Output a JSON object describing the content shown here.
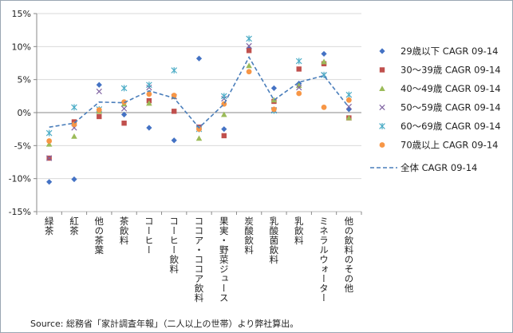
{
  "source_note": "Source: 総務省「家計調査年報」（二人以上の世帯）より弊社算出。",
  "chart_data": {
    "type": "scatter",
    "ylim": [
      -0.15,
      0.15
    ],
    "yticks": [
      -0.15,
      -0.1,
      -0.05,
      0,
      0.05,
      0.1,
      0.15
    ],
    "ytick_labels": [
      "-15%",
      "-10%",
      "-5%",
      "0%",
      "5%",
      "10%",
      "15%"
    ],
    "categories": [
      "緑茶",
      "紅茶",
      "他の茶葉",
      "茶飲料",
      "コーヒー",
      "コーヒー飲料",
      "ココア・ココア飲料",
      "果実・野菜ジュース",
      "炭酸飲料",
      "乳酸菌飲料",
      "乳飲料",
      "ミネラルウォーター",
      "他の飲料のその他"
    ],
    "legend_position": "right",
    "series": [
      {
        "name": "29歳以下 CAGR 09-14",
        "marker": "diamond",
        "color": "#4472c4",
        "values": [
          -0.105,
          -0.101,
          0.042,
          -0.003,
          -0.023,
          -0.042,
          0.082,
          -0.025,
          0.097,
          0.037,
          0.044,
          0.089,
          0.005
        ]
      },
      {
        "name": "30～39歳 CAGR 09-14",
        "marker": "square",
        "color": "#c0504d",
        "values": [
          -0.069,
          -0.014,
          -0.006,
          -0.016,
          0.018,
          0.002,
          -0.022,
          -0.035,
          0.094,
          0.017,
          0.066,
          0.074,
          -0.008
        ]
      },
      {
        "name": "40～49歳 CAGR 09-14",
        "marker": "triangle",
        "color": "#9bbb59",
        "values": [
          -0.048,
          -0.036,
          0.002,
          0.013,
          0.014,
          0.024,
          -0.039,
          -0.003,
          0.071,
          0.019,
          0.041,
          0.077,
          -0.008
        ]
      },
      {
        "name": "50～59歳 CAGR 09-14",
        "marker": "x",
        "color": "#8064a2",
        "values": [
          -0.069,
          -0.023,
          0.032,
          0.006,
          0.038,
          0.024,
          -0.022,
          0.021,
          0.101,
          0.004,
          0.038,
          0.057,
          0.009
        ]
      },
      {
        "name": "60～69歳 CAGR 09-14",
        "marker": "star",
        "color": "#4bacc6",
        "values": [
          -0.031,
          0.008,
          0.005,
          0.037,
          0.042,
          0.064,
          -0.025,
          0.025,
          0.112,
          0.003,
          0.078,
          0.057,
          0.027
        ]
      },
      {
        "name": "70歳以上 CAGR 09-14",
        "marker": "circle",
        "color": "#f79646",
        "values": [
          -0.043,
          -0.018,
          0.004,
          0.016,
          0.028,
          0.026,
          -0.025,
          0.013,
          0.062,
          0.005,
          0.029,
          0.008,
          0.019
        ]
      },
      {
        "name": "全体 CAGR 09-14",
        "marker": "dashed-line",
        "color": "#4a7ebb",
        "values": [
          -0.022,
          -0.016,
          0.016,
          0.015,
          0.033,
          0.022,
          -0.023,
          0.013,
          0.084,
          0.019,
          0.046,
          0.056,
          0.008
        ]
      }
    ]
  }
}
